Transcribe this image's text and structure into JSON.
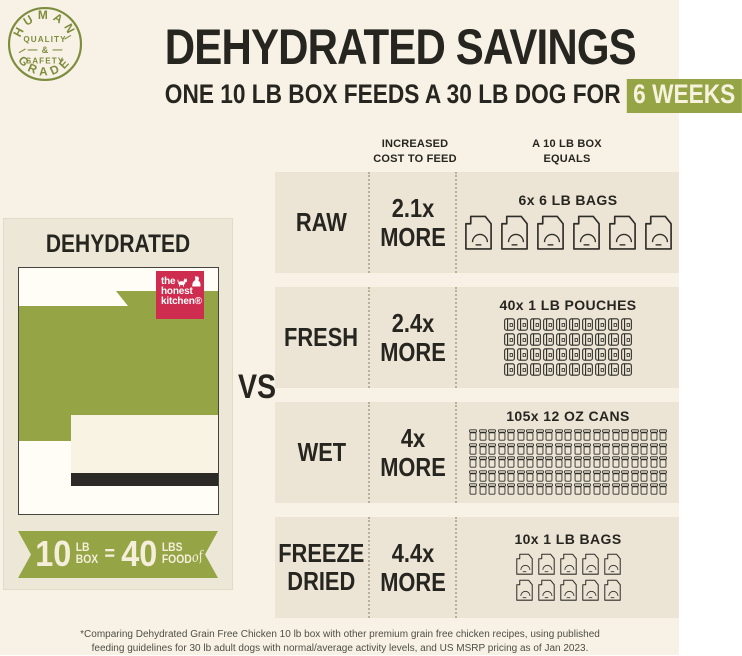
{
  "colors": {
    "page_bg": "#f8f2e6",
    "row_bg": "#ece5d6",
    "accent_green": "#95a546",
    "badge_green": "#7e8d3d",
    "logo_red": "#ce2d4f",
    "ink": "#26251f"
  },
  "badge": {
    "arc_top": "HUMAN",
    "arc_bottom": "GRADE",
    "center": [
      "QUALITY",
      "&",
      "SAFETY"
    ]
  },
  "header": {
    "title": "DEHYDRATED SAVINGS",
    "subtitle_prefix": "ONE 10 LB BOX FEEDS A 30 LB DOG FOR",
    "subtitle_highlight": "6 WEEKS"
  },
  "left_panel": {
    "title": "DEHYDRATED",
    "logo": {
      "line1": "the",
      "line2": "honest",
      "line3": "kitchen®"
    },
    "ribbon": {
      "value1": "10",
      "unit1_top": "LB",
      "unit1_bottom": "BOX",
      "equals": "=",
      "value2": "40",
      "unit2_top": "LBS",
      "unit2_mid": "of",
      "unit2_bottom": "FOOD"
    }
  },
  "vs_label": "VS",
  "table": {
    "col2_header": [
      "INCREASED",
      "COST TO FEED"
    ],
    "col3_header": [
      "A 10 LB BOX",
      "EQUALS"
    ],
    "rows": [
      {
        "name_lines": [
          "RAW"
        ],
        "cost": "2.1x",
        "cost_suffix": "MORE",
        "equals_label": "6x 6 LB BAGS",
        "icon": "bag",
        "icon_count": 6,
        "icons_per_row": 6
      },
      {
        "name_lines": [
          "FRESH"
        ],
        "cost": "2.4x",
        "cost_suffix": "MORE",
        "equals_label": "40x 1 LB POUCHES",
        "icon": "pouch",
        "icon_count": 40,
        "icons_per_row": 10
      },
      {
        "name_lines": [
          "WET"
        ],
        "cost": "4x",
        "cost_suffix": "MORE",
        "equals_label": "105x 12 OZ CANS",
        "icon": "can",
        "icon_count": 105,
        "icons_per_row": 21
      },
      {
        "name_lines": [
          "FREEZE",
          "DRIED"
        ],
        "cost": "4.4x",
        "cost_suffix": "MORE",
        "equals_label": "10x 1 LB BAGS",
        "icon": "bag",
        "icon_count": 10,
        "icons_per_row": 5
      }
    ]
  },
  "footnote": {
    "line1": "*Comparing Dehydrated Grain Free Chicken 10 lb box with other premium grain free chicken recipes, using published",
    "line2": "feeding guidelines for 30 lb adult dogs with normal/average activity levels, and US MSRP pricing as of Jan 2023."
  }
}
